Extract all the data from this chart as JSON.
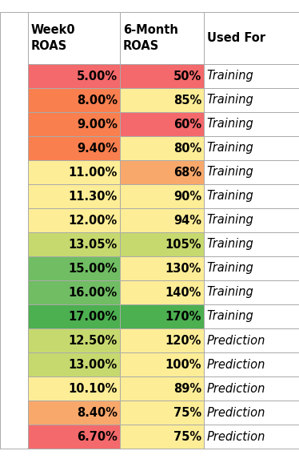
{
  "headers": [
    "Week0\nROAS",
    "6-Month\nROAS",
    "Used For"
  ],
  "rows": [
    {
      "week0": "5.00%",
      "month6": "50%",
      "used": "Training",
      "col1_color": "#F4696B",
      "col2_color": "#F4696B"
    },
    {
      "week0": "8.00%",
      "month6": "85%",
      "used": "Training",
      "col1_color": "#F97F4F",
      "col2_color": "#FDED96"
    },
    {
      "week0": "9.00%",
      "month6": "60%",
      "used": "Training",
      "col1_color": "#F97F4F",
      "col2_color": "#F4696B"
    },
    {
      "week0": "9.40%",
      "month6": "80%",
      "used": "Training",
      "col1_color": "#F97F4F",
      "col2_color": "#FDED96"
    },
    {
      "week0": "11.00%",
      "month6": "68%",
      "used": "Training",
      "col1_color": "#FDED96",
      "col2_color": "#F9A86B"
    },
    {
      "week0": "11.30%",
      "month6": "90%",
      "used": "Training",
      "col1_color": "#FDED96",
      "col2_color": "#FDED96"
    },
    {
      "week0": "12.00%",
      "month6": "94%",
      "used": "Training",
      "col1_color": "#FDED96",
      "col2_color": "#FDED96"
    },
    {
      "week0": "13.05%",
      "month6": "105%",
      "used": "Training",
      "col1_color": "#C6D96F",
      "col2_color": "#C6D96F"
    },
    {
      "week0": "15.00%",
      "month6": "130%",
      "used": "Training",
      "col1_color": "#70BD63",
      "col2_color": "#FDED96"
    },
    {
      "week0": "16.00%",
      "month6": "140%",
      "used": "Training",
      "col1_color": "#70BD63",
      "col2_color": "#FDED96"
    },
    {
      "week0": "17.00%",
      "month6": "170%",
      "used": "Training",
      "col1_color": "#4CAF50",
      "col2_color": "#4CAF50"
    },
    {
      "week0": "12.50%",
      "month6": "120%",
      "used": "Prediction",
      "col1_color": "#C6D96F",
      "col2_color": "#FDED96"
    },
    {
      "week0": "13.00%",
      "month6": "100%",
      "used": "Prediction",
      "col1_color": "#C6D96F",
      "col2_color": "#FDED96"
    },
    {
      "week0": "10.10%",
      "month6": "89%",
      "used": "Prediction",
      "col1_color": "#FDED96",
      "col2_color": "#FDED96"
    },
    {
      "week0": "8.40%",
      "month6": "75%",
      "used": "Prediction",
      "col1_color": "#F9A86B",
      "col2_color": "#FDED96"
    },
    {
      "week0": "6.70%",
      "month6": "75%",
      "used": "Prediction",
      "col1_color": "#F4696B",
      "col2_color": "#FDED96"
    }
  ],
  "fig_bg": "#FFFFFF",
  "cell_text_color": "#000000",
  "header_text_color": "#000000",
  "grid_color": "#AAAAAA",
  "figwidth": 3.74,
  "figheight": 5.83,
  "dpi": 100
}
